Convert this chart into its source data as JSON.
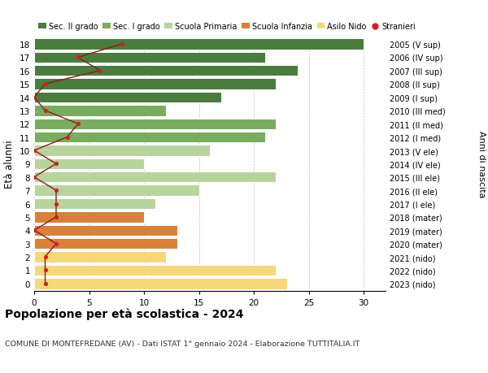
{
  "ages": [
    18,
    17,
    16,
    15,
    14,
    13,
    12,
    11,
    10,
    9,
    8,
    7,
    6,
    5,
    4,
    3,
    2,
    1,
    0
  ],
  "bar_values": [
    30,
    21,
    24,
    22,
    17,
    12,
    22,
    21,
    16,
    10,
    22,
    15,
    11,
    10,
    13,
    13,
    12,
    22,
    23
  ],
  "stranieri_values": [
    8,
    4,
    6,
    1,
    0,
    1,
    4,
    3,
    0,
    2,
    0,
    2,
    2,
    2,
    0,
    2,
    1,
    1,
    1
  ],
  "right_labels": [
    "2005 (V sup)",
    "2006 (IV sup)",
    "2007 (III sup)",
    "2008 (II sup)",
    "2009 (I sup)",
    "2010 (III med)",
    "2011 (II med)",
    "2012 (I med)",
    "2013 (V ele)",
    "2014 (IV ele)",
    "2015 (III ele)",
    "2016 (II ele)",
    "2017 (I ele)",
    "2018 (mater)",
    "2019 (mater)",
    "2020 (mater)",
    "2021 (nido)",
    "2022 (nido)",
    "2023 (nido)"
  ],
  "bar_colors": [
    "#4a7c40",
    "#4a7c40",
    "#4a7c40",
    "#4a7c40",
    "#4a7c40",
    "#7aac60",
    "#7aac60",
    "#7aac60",
    "#b8d49e",
    "#b8d49e",
    "#b8d49e",
    "#b8d49e",
    "#b8d49e",
    "#d9813a",
    "#d9813a",
    "#d9813a",
    "#f5d87a",
    "#f5d87a",
    "#f5d87a"
  ],
  "legend_labels": [
    "Sec. II grado",
    "Sec. I grado",
    "Scuola Primaria",
    "Scuola Infanzia",
    "Asilo Nido",
    "Stranieri"
  ],
  "legend_colors": [
    "#4a7c40",
    "#7aac60",
    "#b8d49e",
    "#d9813a",
    "#f5d87a",
    "#cc2222"
  ],
  "title": "Popolazione per età scolastica - 2024",
  "subtitle": "COMUNE DI MONTEFREDANE (AV) - Dati ISTAT 1° gennaio 2024 - Elaborazione TUTTITALIA.IT",
  "ylabel_left": "Età alunni",
  "ylabel_right": "Anni di nascita",
  "xlim": [
    0,
    32
  ],
  "xticks": [
    0,
    5,
    10,
    15,
    20,
    25,
    30
  ],
  "stranieri_line_color": "#8b1a1a",
  "stranieri_dot_color": "#cc2222",
  "background_color": "#ffffff",
  "bar_height": 0.82
}
